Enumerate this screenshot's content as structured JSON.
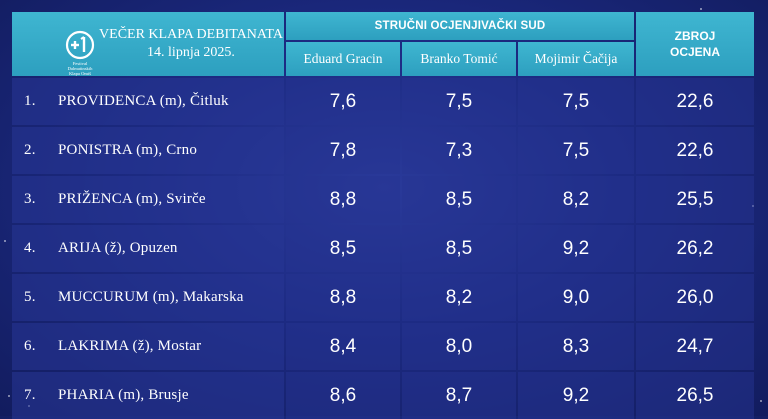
{
  "header": {
    "logo_text": [
      "Festival",
      "Dalmatinskih",
      "Klapa Omiš"
    ],
    "event_title": "VEČER KLAPA DEBITANATA",
    "event_date": "14. lipnja 2025.",
    "jury_title": "STRUČNI OCJENJIVAČKI SUD",
    "judges": [
      "Eduard Gracin",
      "Branko Tomić",
      "Mojimir Čačija"
    ],
    "total_line1": "ZBROJ",
    "total_line2": "OCJENA"
  },
  "rows": [
    {
      "rank": "1.",
      "name": "PROVIDENCA (m), Čitluk",
      "scores": [
        "7,6",
        "7,5",
        "7,5"
      ],
      "total": "22,6"
    },
    {
      "rank": "2.",
      "name": "PONISTRA (m), Crno",
      "scores": [
        "7,8",
        "7,3",
        "7,5"
      ],
      "total": "22,6"
    },
    {
      "rank": "3.",
      "name": "PRIŽENCA (m), Svirče",
      "scores": [
        "8,8",
        "8,5",
        "8,2"
      ],
      "total": "25,5"
    },
    {
      "rank": "4.",
      "name": "ARIJA (ž), Opuzen",
      "scores": [
        "8,5",
        "8,5",
        "9,2"
      ],
      "total": "26,2"
    },
    {
      "rank": "5.",
      "name": "MUCCURUM (m), Makarska",
      "scores": [
        "8,8",
        "8,2",
        "9,0"
      ],
      "total": "26,0"
    },
    {
      "rank": "6.",
      "name": "LAKRIMA (ž), Mostar",
      "scores": [
        "8,4",
        "8,0",
        "8,3"
      ],
      "total": "24,7"
    },
    {
      "rank": "7.",
      "name": "PHARIA (m), Brusje",
      "scores": [
        "8,6",
        "8,7",
        "9,2"
      ],
      "total": "26,5"
    }
  ]
}
